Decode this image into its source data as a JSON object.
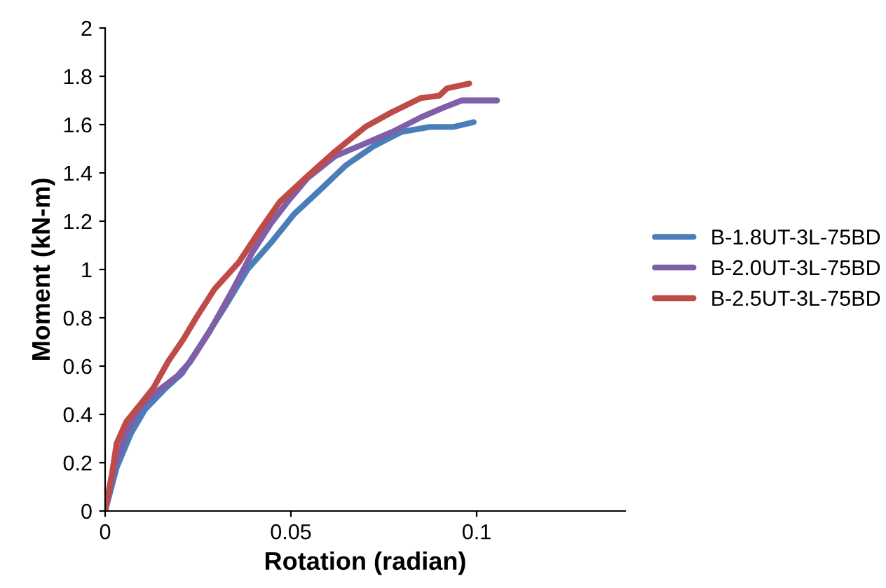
{
  "chart_data": {
    "type": "line",
    "xlabel": "Rotation (radian)",
    "ylabel": "Moment (kN-m)",
    "xlim": [
      0,
      0.14
    ],
    "xticks": [
      0,
      0.05,
      0.1
    ],
    "ylim": [
      0,
      2
    ],
    "yticks": [
      0,
      0.2,
      0.4,
      0.6,
      0.8,
      1,
      1.2,
      1.4,
      1.6,
      1.8,
      2
    ],
    "grid": false,
    "legend": "right",
    "marker": "none",
    "line_style": "solid",
    "series": [
      {
        "name": "B-1.8UT-3L-75BD",
        "color": "#4a7ebb",
        "x": [
          0,
          0.0031,
          0.0069,
          0.0107,
          0.0157,
          0.0207,
          0.0258,
          0.032,
          0.0383,
          0.0446,
          0.0509,
          0.0572,
          0.0647,
          0.0722,
          0.0798,
          0.0873,
          0.0936,
          0.0992
        ],
        "values": [
          0,
          0.18,
          0.32,
          0.42,
          0.5,
          0.57,
          0.69,
          0.84,
          1.0,
          1.11,
          1.23,
          1.32,
          1.43,
          1.51,
          1.57,
          1.59,
          1.59,
          1.61
        ]
      },
      {
        "name": "B-2.0UT-3L-75BD",
        "color": "#7f5fa8",
        "x": [
          0,
          0.0025,
          0.0057,
          0.0094,
          0.0144,
          0.0195,
          0.023,
          0.028,
          0.0345,
          0.0396,
          0.0446,
          0.0496,
          0.0546,
          0.062,
          0.0697,
          0.0773,
          0.085,
          0.091,
          0.096,
          0.1055
        ],
        "values": [
          0,
          0.18,
          0.32,
          0.43,
          0.5,
          0.56,
          0.62,
          0.74,
          0.92,
          1.07,
          1.19,
          1.29,
          1.38,
          1.47,
          1.52,
          1.57,
          1.63,
          1.67,
          1.7,
          1.7
        ]
      },
      {
        "name": "B-2.5UT-3L-75BD",
        "color": "#be4b48",
        "x": [
          0,
          0.0019,
          0.0031,
          0.0057,
          0.0094,
          0.013,
          0.017,
          0.021,
          0.0245,
          0.0295,
          0.036,
          0.042,
          0.047,
          0.054,
          0.062,
          0.07,
          0.077,
          0.085,
          0.09,
          0.092,
          0.098
        ],
        "values": [
          0,
          0.16,
          0.28,
          0.37,
          0.44,
          0.51,
          0.62,
          0.71,
          0.8,
          0.92,
          1.03,
          1.17,
          1.28,
          1.38,
          1.49,
          1.59,
          1.65,
          1.71,
          1.72,
          1.75,
          1.77
        ]
      }
    ]
  }
}
